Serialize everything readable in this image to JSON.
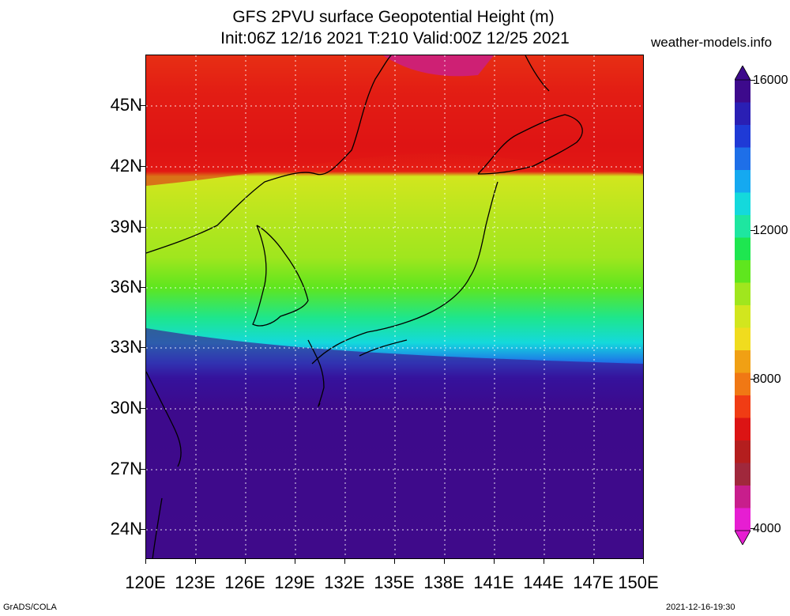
{
  "title_line1": "GFS 2PVU surface Geopotential Height (m)",
  "title_line2": "Init:06Z 12/16 2021 T:210 Valid:00Z 12/25 2021",
  "credit": "weather-models.info",
  "footer_left": "GrADS/COLA",
  "footer_right": "2021-12-16-19:30",
  "lat_labels": [
    "45N",
    "42N",
    "39N",
    "36N",
    "33N",
    "30N",
    "27N",
    "24N"
  ],
  "lon_labels": [
    "120E",
    "123E",
    "126E",
    "129E",
    "132E",
    "135E",
    "138E",
    "141E",
    "144E",
    "147E",
    "150E"
  ],
  "colorbar": {
    "labels": [
      "16000",
      "12000",
      "8000",
      "4000"
    ],
    "colors": [
      "#3d0a8c",
      "#2a1fb4",
      "#1f3ad6",
      "#1e6fe8",
      "#15a9f0",
      "#14d9dc",
      "#1ee6a0",
      "#1ee650",
      "#5fe61e",
      "#a0e61e",
      "#d2e61e",
      "#f0dc1e",
      "#f0a014",
      "#f07814",
      "#f03c14",
      "#dc1414",
      "#b41e1e",
      "#a0283c",
      "#c81e8c",
      "#e61ed2"
    ]
  },
  "map": {
    "lon_range": [
      120,
      150
    ],
    "lat_range": [
      22.4,
      47.5
    ]
  }
}
